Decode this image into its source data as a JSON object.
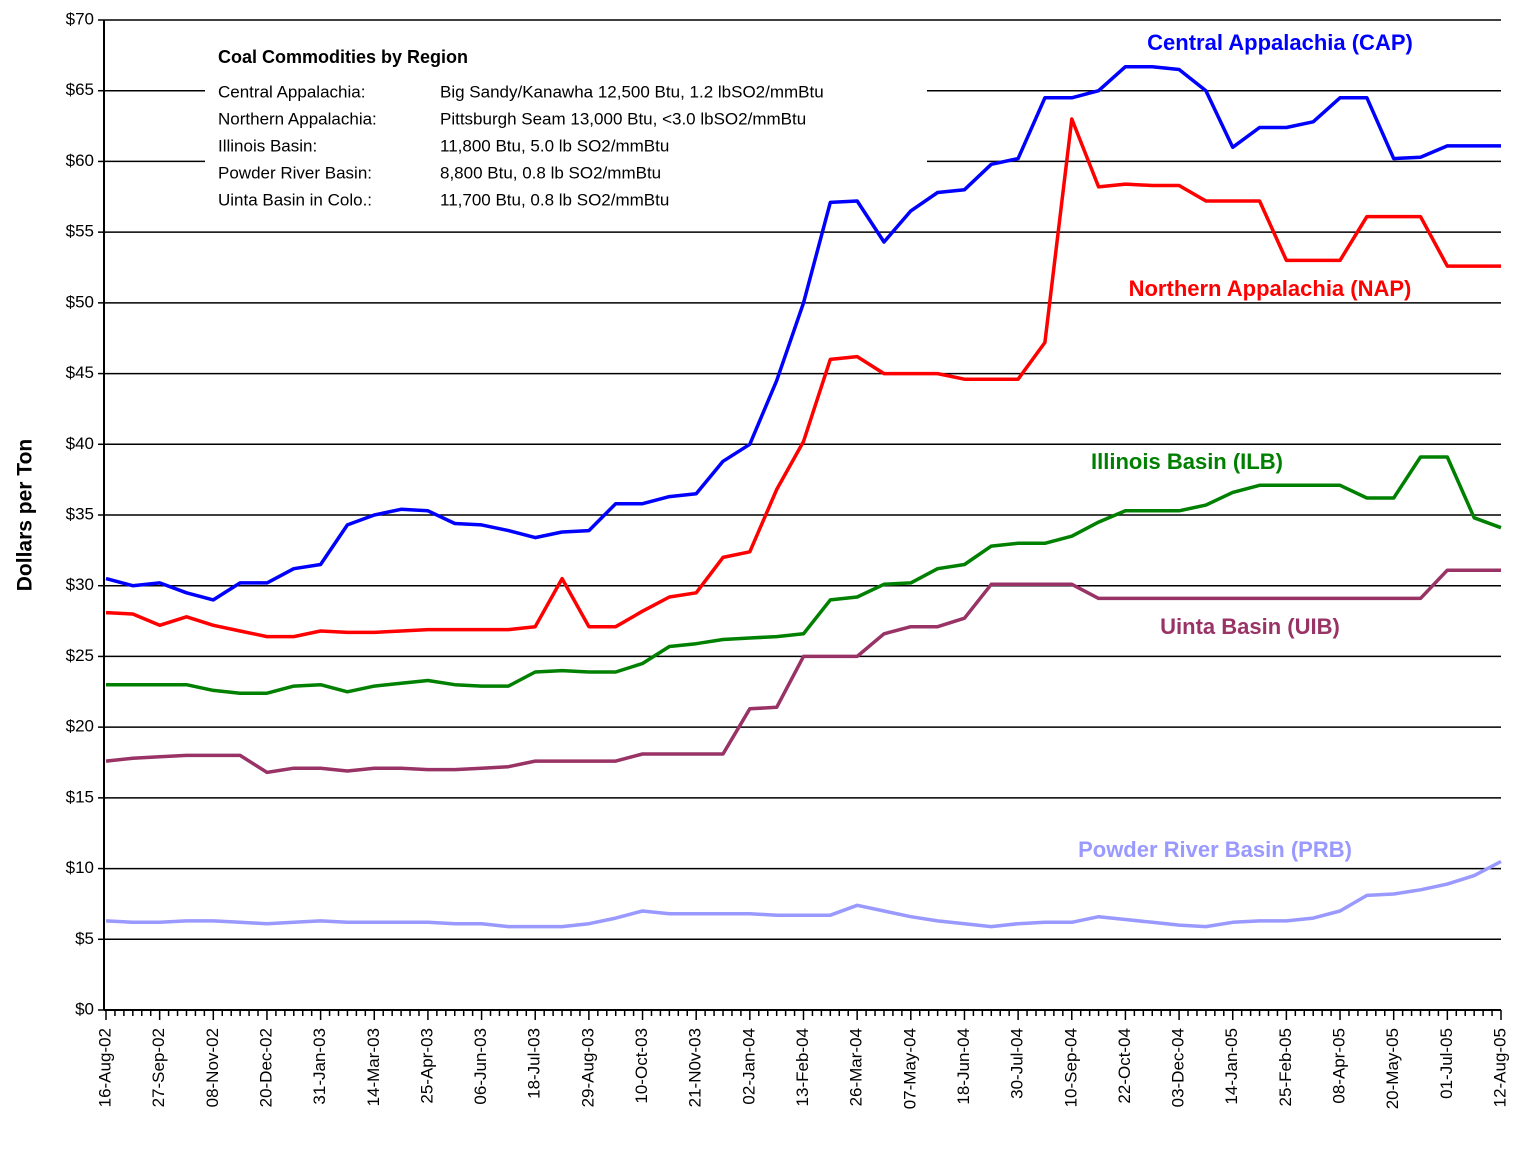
{
  "chart_data": {
    "type": "line",
    "y_label": "Dollars per Ton",
    "legend_box": {
      "title": "Coal Commodities by Region",
      "rows": [
        [
          "Central Appalachia:",
          "Big Sandy/Kanawha 12,500 Btu, 1.2 lbSO2/mmBtu"
        ],
        [
          "Northern Appalachia:",
          "Pittsburgh Seam 13,000 Btu, <3.0 lbSO2/mmBtu"
        ],
        [
          "Illinois Basin:",
          "11,800 Btu, 5.0 lb SO2/mmBtu"
        ],
        [
          "Powder River Basin:",
          "8,800 Btu, 0.8 lb SO2/mmBtu"
        ],
        [
          "Uinta Basin in Colo.:",
          "11,700 Btu, 0.8 lb SO2/mmBtu"
        ]
      ]
    },
    "categories": [
      "16-Aug-02",
      null,
      "27-Sep-02",
      null,
      "08-Nov-02",
      null,
      "20-Dec-02",
      null,
      "31-Jan-03",
      null,
      "14-Mar-03",
      null,
      "25-Apr-03",
      null,
      "06-Jun-03",
      null,
      "18-Jul-03",
      null,
      "29-Aug-03",
      null,
      "10-Oct-03",
      null,
      "21-N0v-03",
      null,
      "02-Jan-04",
      null,
      "13-Feb-04",
      null,
      "26-Mar-04",
      null,
      "07-May-04",
      null,
      "18-Jun-04",
      null,
      "30-Jul-04",
      null,
      "10-Sep-04",
      null,
      "22-Oct-04",
      null,
      "03-Dec-04",
      null,
      "14-Jan-05",
      null,
      "25-Feb-05",
      null,
      "08-Apr-05",
      null,
      "20-May-05",
      null,
      "01-Jul-05",
      null,
      "12-Aug-05"
    ],
    "series": [
      {
        "name": "Central Appalachia (CAP)",
        "color": "#0000ff",
        "values": [
          30.5,
          30,
          30.2,
          29.5,
          29,
          30.2,
          30.2,
          31.2,
          31.5,
          34.3,
          35,
          35.4,
          35.3,
          34.4,
          34.3,
          33.9,
          33.4,
          33.8,
          33.9,
          35.8,
          35.8,
          36.3,
          36.5,
          38.8,
          40,
          44.5,
          50,
          57.1,
          57.2,
          54.3,
          56.5,
          57.8,
          58,
          59.8,
          60.2,
          64.5,
          64.5,
          65,
          66.7,
          66.7,
          66.5,
          65,
          61,
          62.4,
          62.4,
          62.8,
          64.5,
          64.5,
          60.2,
          60.3,
          61.1,
          61.1,
          61.1
        ]
      },
      {
        "name": "Northern Appalachia (NAP)",
        "color": "#ff0000",
        "values": [
          28.1,
          28,
          27.2,
          27.8,
          27.2,
          26.8,
          26.4,
          26.4,
          26.8,
          26.7,
          26.7,
          26.8,
          26.9,
          26.9,
          26.9,
          26.9,
          27.1,
          30.5,
          27.1,
          27.1,
          28.2,
          29.2,
          29.5,
          32,
          32.4,
          36.8,
          40.2,
          46,
          46.2,
          45,
          45,
          45,
          44.6,
          44.6,
          44.6,
          47.2,
          63,
          58.2,
          58.4,
          58.3,
          58.3,
          57.2,
          57.2,
          57.2,
          53,
          53,
          53,
          56.1,
          56.1,
          56.1,
          52.6,
          52.6,
          52.6
        ]
      },
      {
        "name": "Illinois Basin (ILB)",
        "color": "#008000",
        "values": [
          23,
          23,
          23,
          23,
          22.6,
          22.4,
          22.4,
          22.9,
          23,
          22.5,
          22.9,
          23.1,
          23.3,
          23,
          22.9,
          22.9,
          23.9,
          24,
          23.9,
          23.9,
          24.5,
          25.7,
          25.9,
          26.2,
          26.3,
          26.4,
          26.6,
          29,
          29.2,
          30.1,
          30.2,
          31.2,
          31.5,
          32.8,
          33,
          33,
          33.5,
          34.5,
          35.3,
          35.3,
          35.3,
          35.7,
          36.6,
          37.1,
          37.1,
          37.1,
          37.1,
          36.2,
          36.2,
          39.1,
          39.1,
          34.8,
          34.1
        ]
      },
      {
        "name": "Uinta Basin (UIB)",
        "color": "#993366",
        "values": [
          17.6,
          17.8,
          17.9,
          18,
          18,
          18,
          16.8,
          17.1,
          17.1,
          16.9,
          17.1,
          17.1,
          17,
          17,
          17.1,
          17.2,
          17.6,
          17.6,
          17.6,
          17.6,
          18.1,
          18.1,
          18.1,
          18.1,
          21.3,
          21.4,
          25,
          25,
          25,
          26.6,
          27.1,
          27.1,
          27.7,
          30.1,
          30.1,
          30.1,
          30.1,
          29.1,
          29.1,
          29.1,
          29.1,
          29.1,
          29.1,
          29.1,
          29.1,
          29.1,
          29.1,
          29.1,
          29.1,
          29.1,
          31.1,
          31.1,
          31.1
        ]
      },
      {
        "name": "Powder River Basin (PRB)",
        "color": "#9999ff",
        "values": [
          6.3,
          6.2,
          6.2,
          6.3,
          6.3,
          6.2,
          6.1,
          6.2,
          6.3,
          6.2,
          6.2,
          6.2,
          6.2,
          6.1,
          6.1,
          5.9,
          5.9,
          5.9,
          6.1,
          6.5,
          7,
          6.8,
          6.8,
          6.8,
          6.8,
          6.7,
          6.7,
          6.7,
          7.4,
          7,
          6.6,
          6.3,
          6.1,
          5.9,
          6.1,
          6.2,
          6.2,
          6.6,
          6.4,
          6.2,
          6,
          5.9,
          6.2,
          6.3,
          6.3,
          6.5,
          7,
          8.1,
          8.2,
          8.5,
          8.9,
          9.5,
          10.5
        ]
      }
    ],
    "ylim": [
      0,
      70
    ],
    "yticks": [
      {
        "value": 0,
        "label": "$0"
      },
      {
        "value": 5,
        "label": "$5"
      },
      {
        "value": 10,
        "label": "$10"
      },
      {
        "value": 15,
        "label": "$15"
      },
      {
        "value": 20,
        "label": "$20"
      },
      {
        "value": 25,
        "label": "$25"
      },
      {
        "value": 30,
        "label": "$30"
      },
      {
        "value": 35,
        "label": "$35"
      },
      {
        "value": 40,
        "label": "$40"
      },
      {
        "value": 45,
        "label": "$45"
      },
      {
        "value": 50,
        "label": "$50"
      },
      {
        "value": 55,
        "label": "$55"
      },
      {
        "value": 60,
        "label": "$60"
      },
      {
        "value": 65,
        "label": "$65"
      },
      {
        "value": 70,
        "label": "$70"
      }
    ],
    "grid": true
  }
}
